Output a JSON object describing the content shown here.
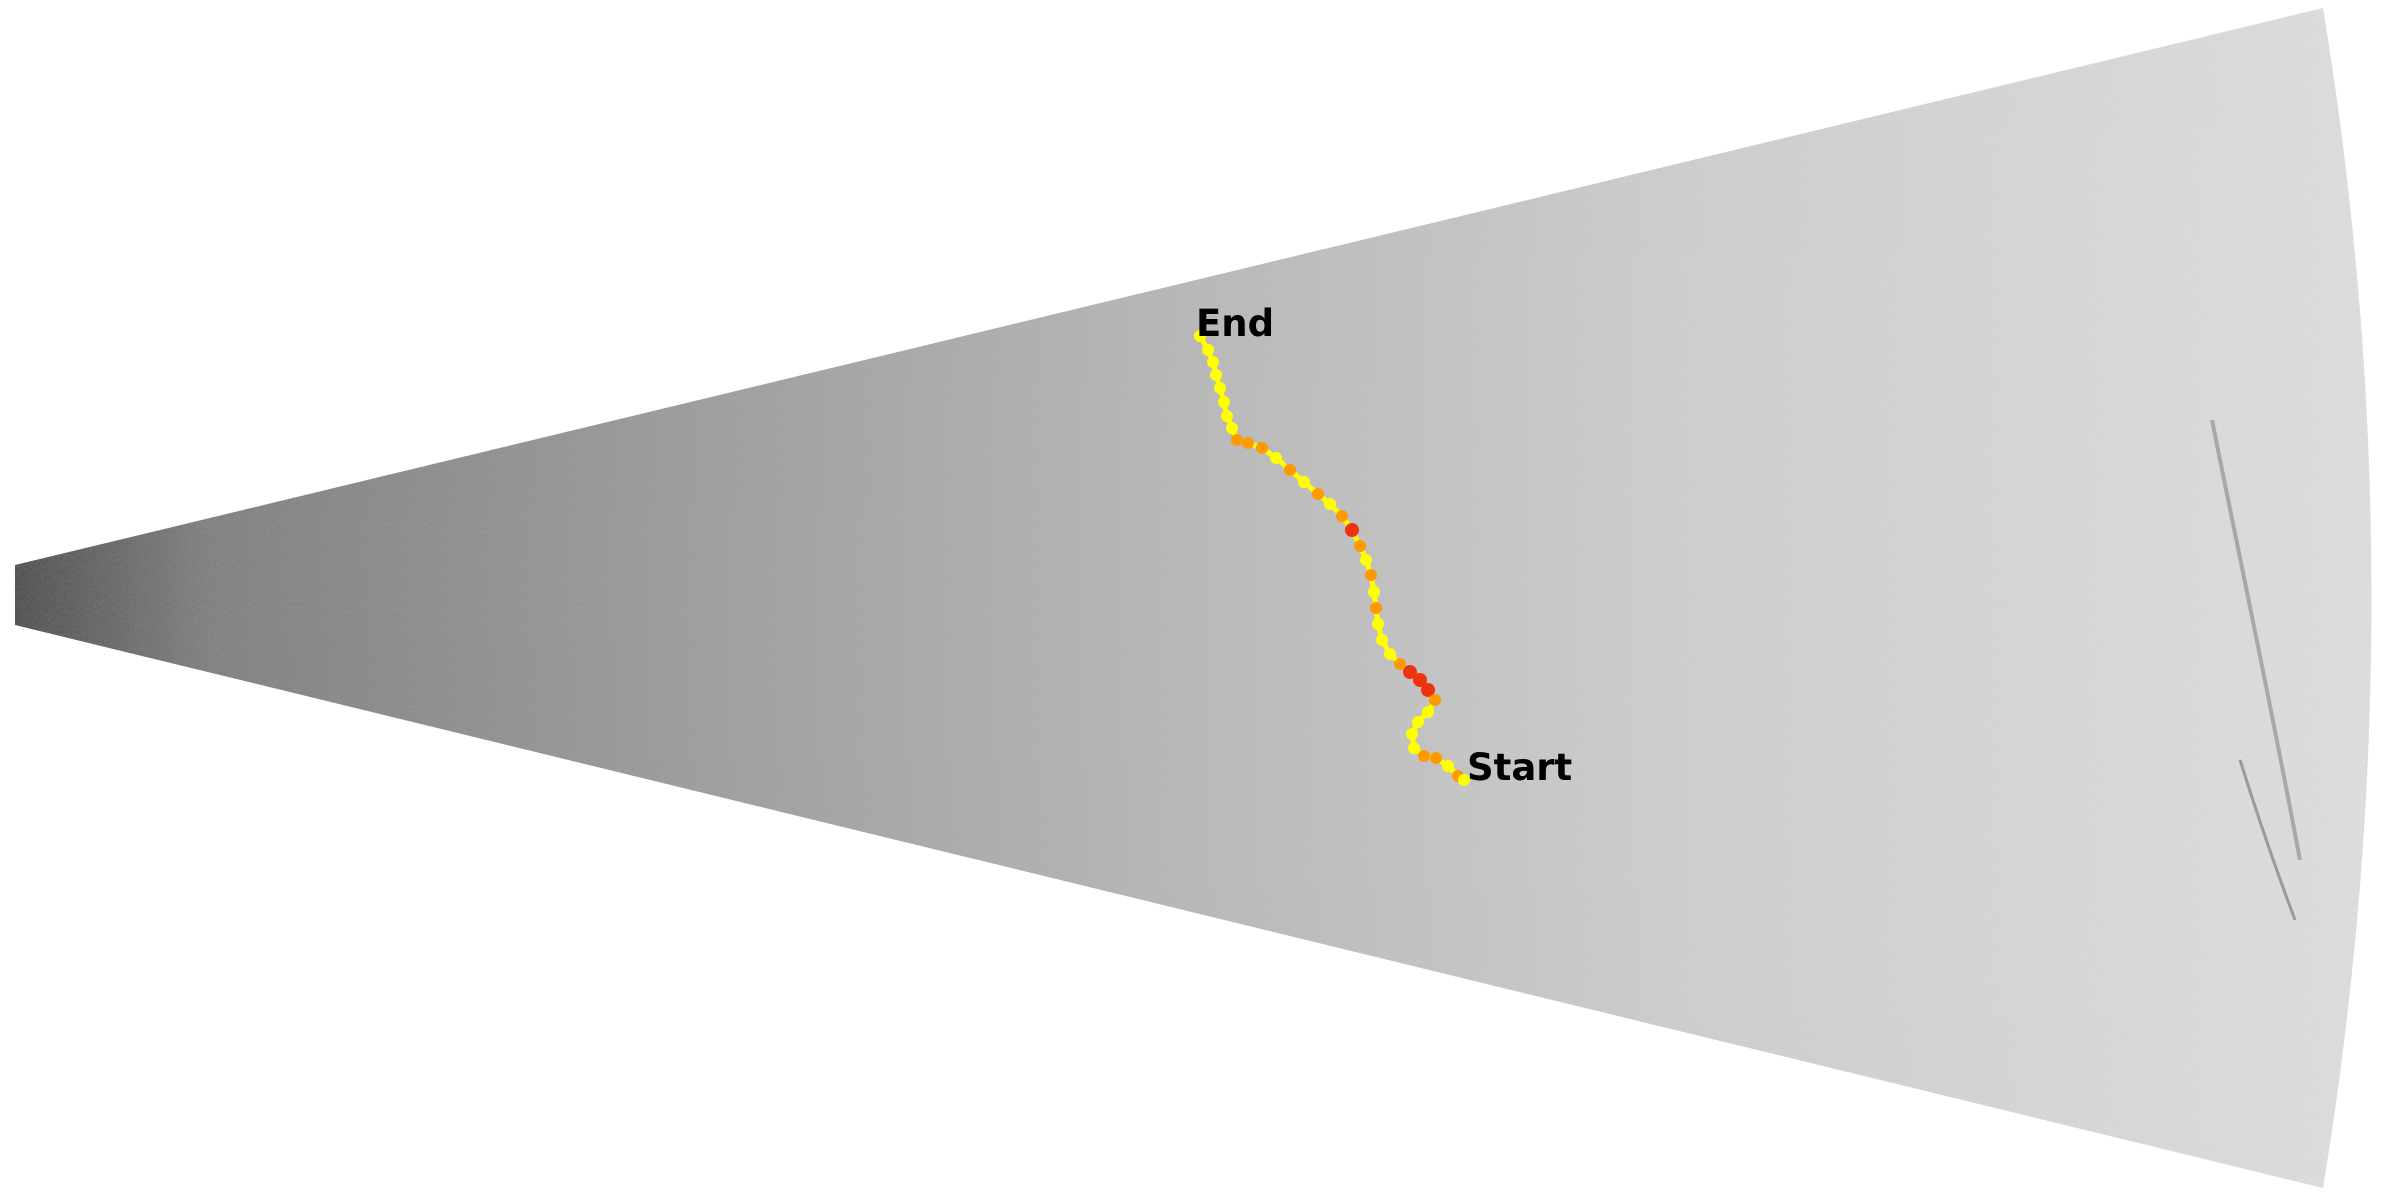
{
  "labels": {
    "start": "Start",
    "end": "End"
  },
  "colors": {
    "background": "#ffffff",
    "sonar_near": "#5c5c5c",
    "sonar_far": "#e6e6e6",
    "track_low": "#ffff00",
    "track_mid": "#ff9900",
    "track_high": "#ee3311"
  }
}
